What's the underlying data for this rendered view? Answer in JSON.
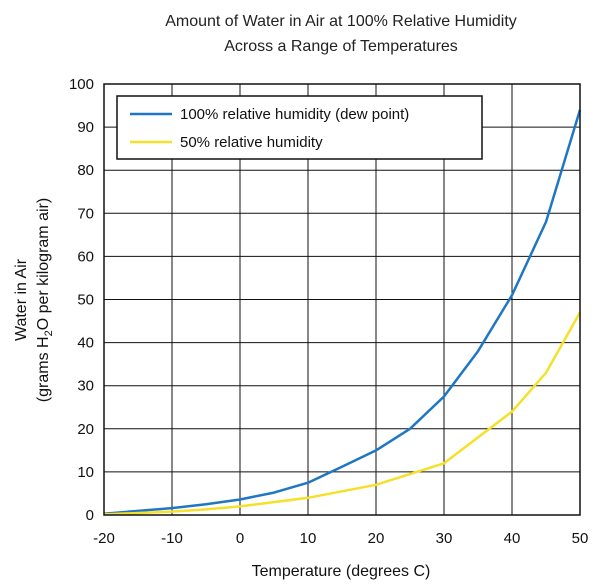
{
  "chart_data": {
    "type": "line",
    "title": "Amount of Water in Air at 100% Relative Humidity",
    "subtitle": "Across a Range of Temperatures",
    "xlabel": "Temperature (degrees C)",
    "ylabel": "Water in Air",
    "ylabel_line2_prefix": "(grams H",
    "ylabel_line2_sub": "2",
    "ylabel_line2_suffix": "O per kilogram air)",
    "xlim": [
      -20,
      50
    ],
    "ylim": [
      0,
      100
    ],
    "x_ticks": [
      -20,
      -10,
      0,
      10,
      20,
      30,
      40,
      50
    ],
    "y_ticks": [
      0,
      10,
      20,
      30,
      40,
      50,
      60,
      70,
      80,
      90,
      100
    ],
    "grid": true,
    "legend_position": "top-left",
    "series": [
      {
        "name": "100% relative humidity (dew point)",
        "color": "#1f77c4",
        "x": [
          -20,
          -10,
          -5,
          0,
          5,
          10,
          15,
          20,
          25,
          30,
          35,
          40,
          45,
          50
        ],
        "y": [
          0.3,
          1.6,
          2.5,
          3.6,
          5.2,
          7.5,
          11.2,
          15.0,
          20.0,
          27.5,
          38.0,
          51.0,
          68.0,
          94.0
        ]
      },
      {
        "name": "50% relative humidity",
        "color": "#f5e02a",
        "x": [
          -20,
          -10,
          -5,
          0,
          5,
          10,
          15,
          20,
          25,
          30,
          35,
          40,
          45,
          50
        ],
        "y": [
          0.15,
          0.8,
          1.3,
          2.0,
          3.0,
          4.0,
          5.5,
          7.0,
          9.5,
          12.0,
          18.0,
          24.0,
          33.0,
          47.0
        ]
      }
    ]
  }
}
